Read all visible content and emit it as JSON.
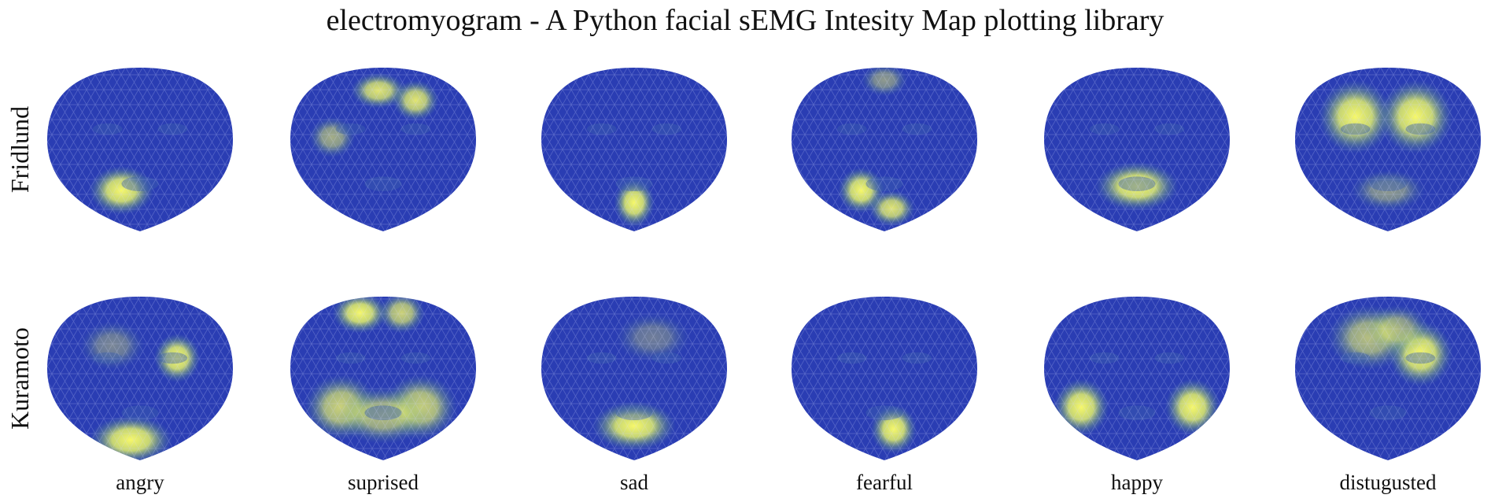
{
  "title": "electromyogram - A Python facial sEMG Intesity Map plotting library",
  "rows": [
    "Fridlund",
    "Kuramoto"
  ],
  "columns": [
    "angry",
    "suprised",
    "sad",
    "fearful",
    "happy",
    "distugusted"
  ]
}
